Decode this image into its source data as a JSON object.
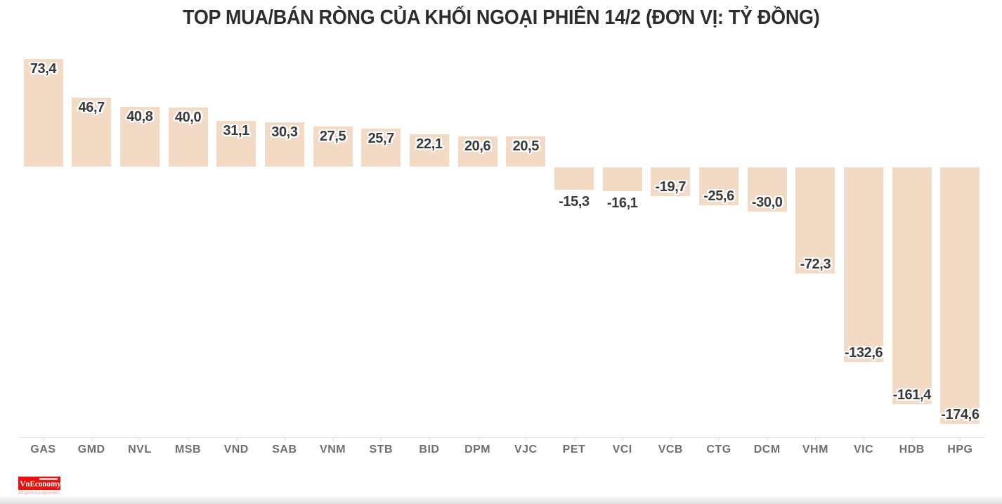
{
  "chart_data": {
    "type": "bar",
    "title": "TOP MUA/BÁN RÒNG CỦA KHỐI NGOẠI PHIÊN 14/2 (ĐƠN VỊ: TỶ ĐỒNG)",
    "categories": [
      "GAS",
      "GMD",
      "NVL",
      "MSB",
      "VND",
      "SAB",
      "VNM",
      "STB",
      "BID",
      "DPM",
      "VJC",
      "PET",
      "VCI",
      "VCB",
      "CTG",
      "DCM",
      "VHM",
      "VIC",
      "HDB",
      "HPG"
    ],
    "values": [
      73.4,
      46.7,
      40.8,
      40.0,
      31.1,
      30.3,
      27.5,
      25.7,
      22.1,
      20.6,
      20.5,
      -15.3,
      -16.1,
      -19.7,
      -25.6,
      -30.0,
      -72.3,
      -132.6,
      -161.4,
      -174.6
    ],
    "value_labels": [
      "73,4",
      "46,7",
      "40,8",
      "40,0",
      "31,1",
      "30,3",
      "27,5",
      "25,7",
      "22,1",
      "20,6",
      "20,5",
      "-15,3",
      "-16,1",
      "-19,7",
      "-25,6",
      "-30,0",
      "-72,3",
      "-132,6",
      "-161,4",
      "-174,6"
    ],
    "decimal_separator": ",",
    "xlabel": "",
    "ylabel": "",
    "grid": false,
    "legend": false,
    "baseline": 0,
    "colors": {
      "bar": "#f2dac5",
      "value_label": "#3a3a3a",
      "value_label_outline": "#ffffff",
      "axis_line": "#e0e0e0",
      "axis_label": "#6f6f6f",
      "title": "#2d2d2d",
      "background": "#ffffff"
    }
  },
  "footer": {
    "logo": {
      "text": "VnEconomy",
      "tagline": "CƠ QUAN CỦA HỘI KHOA HỌC KINH TẾ VIỆT NAM",
      "bg_color": "#e8110d",
      "text_color": "#ffffff",
      "tagline_color": "#ef6b65"
    }
  }
}
